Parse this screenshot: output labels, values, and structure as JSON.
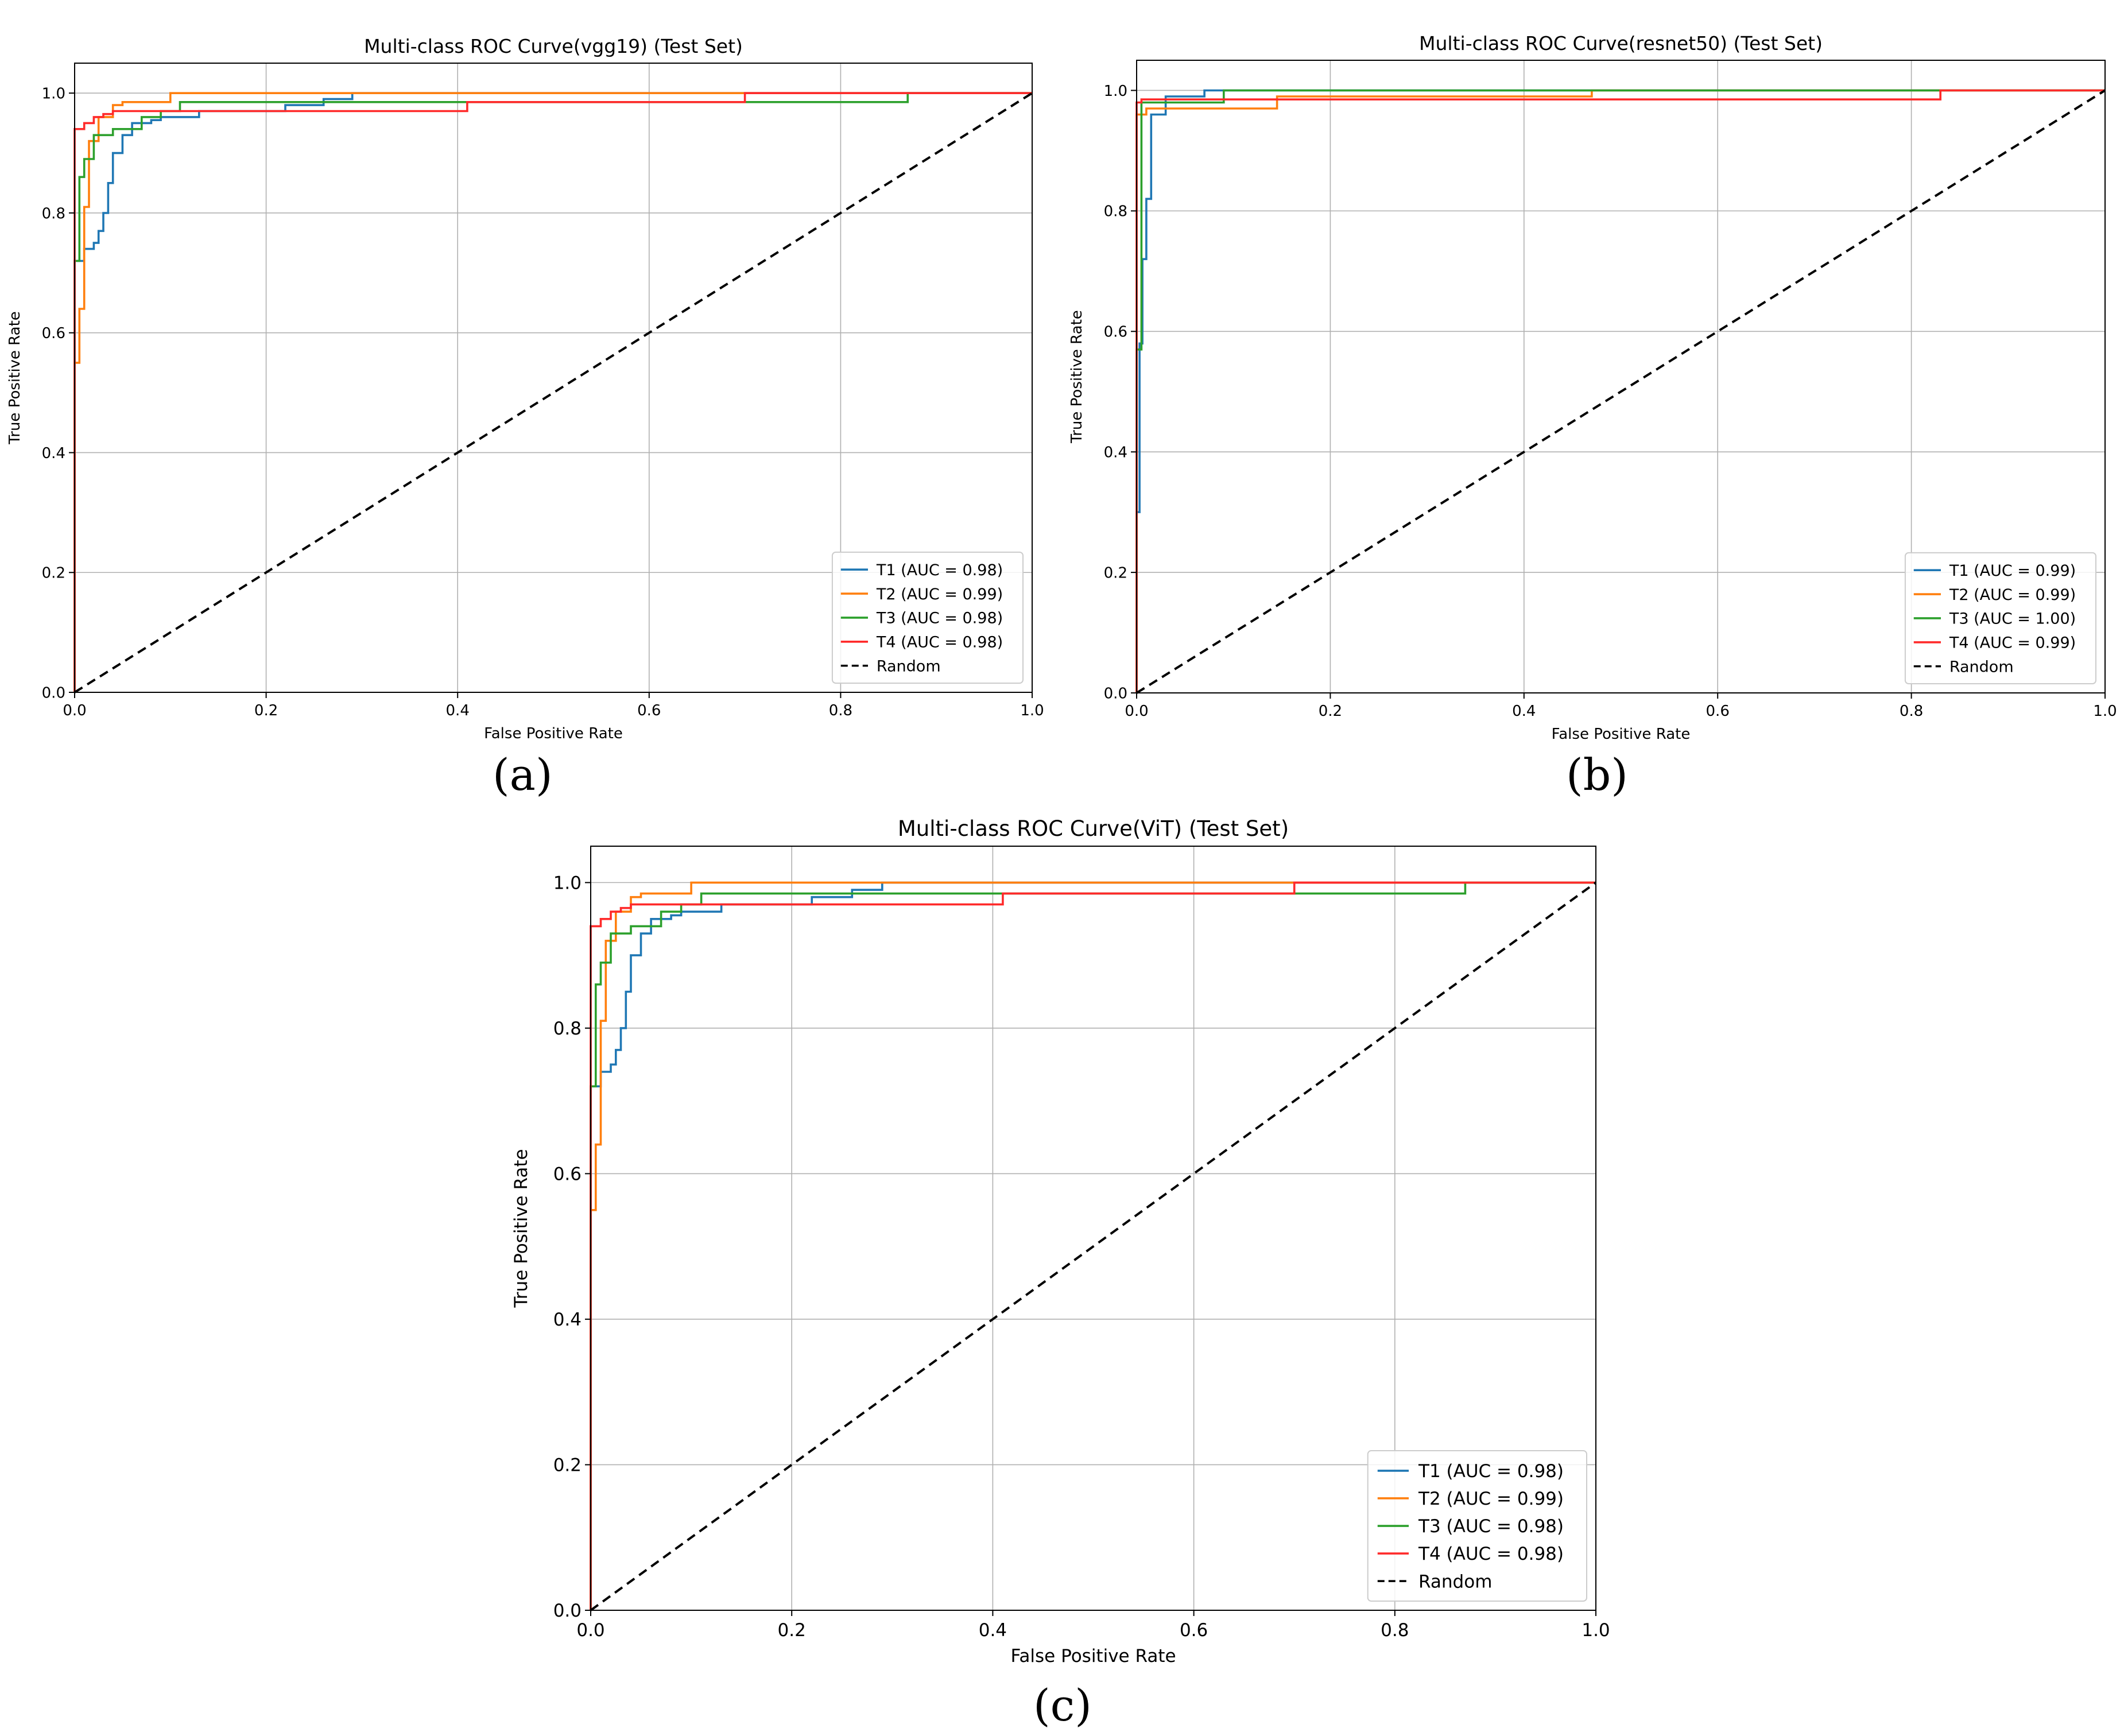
{
  "figure": {
    "panel_labels": [
      "(a)",
      "(b)",
      "(c)"
    ]
  },
  "chart_data": [
    {
      "type": "line",
      "title": "Multi-class ROC Curve(vgg19) (Test Set)",
      "xlabel": "False Positive Rate",
      "ylabel": "True Positive Rate",
      "xlim": [
        0,
        1
      ],
      "ylim": [
        0,
        1.05
      ],
      "xticks": [
        "0.0",
        "0.2",
        "0.4",
        "0.6",
        "0.8",
        "1.0"
      ],
      "yticks": [
        "0.0",
        "0.2",
        "0.4",
        "0.6",
        "0.8",
        "1.0"
      ],
      "grid": true,
      "legend_position": "lower-right",
      "series": [
        {
          "name": "T1 (AUC = 0.98)",
          "color": "#1f77b4",
          "dashed": false,
          "x": [
            0,
            0,
            0.01,
            0.01,
            0.02,
            0.02,
            0.025,
            0.025,
            0.03,
            0.03,
            0.035,
            0.035,
            0.04,
            0.04,
            0.05,
            0.05,
            0.06,
            0.06,
            0.08,
            0.08,
            0.09,
            0.09,
            0.13,
            0.13,
            0.22,
            0.22,
            0.26,
            0.26,
            0.29,
            0.29,
            1.0
          ],
          "y": [
            0,
            0.72,
            0.72,
            0.74,
            0.74,
            0.75,
            0.75,
            0.77,
            0.77,
            0.8,
            0.8,
            0.85,
            0.85,
            0.9,
            0.9,
            0.93,
            0.93,
            0.95,
            0.95,
            0.955,
            0.955,
            0.96,
            0.96,
            0.97,
            0.97,
            0.98,
            0.98,
            0.99,
            0.99,
            1.0,
            1.0
          ]
        },
        {
          "name": "T2 (AUC = 0.99)",
          "color": "#ff7f0e",
          "dashed": false,
          "x": [
            0,
            0,
            0.005,
            0.005,
            0.01,
            0.01,
            0.015,
            0.015,
            0.025,
            0.025,
            0.04,
            0.04,
            0.05,
            0.05,
            0.1,
            0.1,
            1.0
          ],
          "y": [
            0,
            0.55,
            0.55,
            0.64,
            0.64,
            0.81,
            0.81,
            0.92,
            0.92,
            0.96,
            0.96,
            0.98,
            0.98,
            0.985,
            0.985,
            1.0,
            1.0
          ]
        },
        {
          "name": "T3 (AUC = 0.98)",
          "color": "#2ca02c",
          "dashed": false,
          "x": [
            0,
            0,
            0.005,
            0.005,
            0.01,
            0.01,
            0.02,
            0.02,
            0.04,
            0.04,
            0.07,
            0.07,
            0.09,
            0.09,
            0.11,
            0.11,
            0.87,
            0.87,
            1.0
          ],
          "y": [
            0,
            0.72,
            0.72,
            0.86,
            0.86,
            0.89,
            0.89,
            0.93,
            0.93,
            0.94,
            0.94,
            0.96,
            0.96,
            0.97,
            0.97,
            0.985,
            0.985,
            1.0,
            1.0
          ]
        },
        {
          "name": "T4 (AUC = 0.98)",
          "color": "#ff2a2a",
          "dashed": false,
          "x": [
            0,
            0,
            0.01,
            0.01,
            0.02,
            0.02,
            0.03,
            0.03,
            0.04,
            0.04,
            0.41,
            0.41,
            0.7,
            0.7,
            1.0
          ],
          "y": [
            0,
            0.94,
            0.94,
            0.95,
            0.95,
            0.96,
            0.96,
            0.965,
            0.965,
            0.97,
            0.97,
            0.985,
            0.985,
            1.0,
            1.0
          ]
        },
        {
          "name": "Random",
          "color": "#000000",
          "dashed": true,
          "x": [
            0,
            1
          ],
          "y": [
            0,
            1
          ]
        }
      ]
    },
    {
      "type": "line",
      "title": "Multi-class ROC Curve(resnet50) (Test Set)",
      "xlabel": "False Positive Rate",
      "ylabel": "True Positive Rate",
      "xlim": [
        0,
        1
      ],
      "ylim": [
        0,
        1.05
      ],
      "xticks": [
        "0.0",
        "0.2",
        "0.4",
        "0.6",
        "0.8",
        "1.0"
      ],
      "yticks": [
        "0.0",
        "0.2",
        "0.4",
        "0.6",
        "0.8",
        "1.0"
      ],
      "grid": true,
      "legend_position": "lower-right",
      "series": [
        {
          "name": "T1 (AUC = 0.99)",
          "color": "#1f77b4",
          "dashed": false,
          "x": [
            0,
            0,
            0.003,
            0.003,
            0.006,
            0.006,
            0.01,
            0.01,
            0.015,
            0.015,
            0.03,
            0.03,
            0.07,
            0.07,
            1.0
          ],
          "y": [
            0,
            0.3,
            0.3,
            0.58,
            0.58,
            0.72,
            0.72,
            0.82,
            0.82,
            0.96,
            0.96,
            0.99,
            0.99,
            1.0,
            1.0
          ]
        },
        {
          "name": "T2 (AUC = 0.99)",
          "color": "#ff7f0e",
          "dashed": false,
          "x": [
            0,
            0,
            0.01,
            0.01,
            0.145,
            0.145,
            0.47,
            0.47,
            1.0
          ],
          "y": [
            0,
            0.96,
            0.96,
            0.97,
            0.97,
            0.99,
            0.99,
            1.0,
            1.0
          ]
        },
        {
          "name": "T3 (AUC = 1.00)",
          "color": "#2ca02c",
          "dashed": false,
          "x": [
            0,
            0,
            0.005,
            0.005,
            0.09,
            0.09,
            1.0
          ],
          "y": [
            0,
            0.57,
            0.57,
            0.98,
            0.98,
            1.0,
            1.0
          ]
        },
        {
          "name": "T4 (AUC = 0.99)",
          "color": "#ff2a2a",
          "dashed": false,
          "x": [
            0,
            0,
            0.005,
            0.005,
            0.83,
            0.83,
            1.0
          ],
          "y": [
            0,
            0.98,
            0.98,
            0.985,
            0.985,
            1.0,
            1.0
          ]
        },
        {
          "name": "Random",
          "color": "#000000",
          "dashed": true,
          "x": [
            0,
            1
          ],
          "y": [
            0,
            1
          ]
        }
      ]
    },
    {
      "type": "line",
      "title": "Multi-class ROC Curve(ViT) (Test Set)",
      "xlabel": "False Positive Rate",
      "ylabel": "True Positive Rate",
      "xlim": [
        0,
        1
      ],
      "ylim": [
        0,
        1.05
      ],
      "xticks": [
        "0.0",
        "0.2",
        "0.4",
        "0.6",
        "0.8",
        "1.0"
      ],
      "yticks": [
        "0.0",
        "0.2",
        "0.4",
        "0.6",
        "0.8",
        "1.0"
      ],
      "grid": true,
      "legend_position": "lower-right",
      "series": [
        {
          "name": "T1 (AUC = 0.98)",
          "color": "#1f77b4",
          "dashed": false,
          "x": [
            0,
            0,
            0.01,
            0.01,
            0.02,
            0.02,
            0.025,
            0.025,
            0.03,
            0.03,
            0.035,
            0.035,
            0.04,
            0.04,
            0.05,
            0.05,
            0.06,
            0.06,
            0.08,
            0.08,
            0.09,
            0.09,
            0.13,
            0.13,
            0.22,
            0.22,
            0.26,
            0.26,
            0.29,
            0.29,
            1.0
          ],
          "y": [
            0,
            0.72,
            0.72,
            0.74,
            0.74,
            0.75,
            0.75,
            0.77,
            0.77,
            0.8,
            0.8,
            0.85,
            0.85,
            0.9,
            0.9,
            0.93,
            0.93,
            0.95,
            0.95,
            0.955,
            0.955,
            0.96,
            0.96,
            0.97,
            0.97,
            0.98,
            0.98,
            0.99,
            0.99,
            1.0,
            1.0
          ]
        },
        {
          "name": "T2 (AUC = 0.99)",
          "color": "#ff7f0e",
          "dashed": false,
          "x": [
            0,
            0,
            0.005,
            0.005,
            0.01,
            0.01,
            0.015,
            0.015,
            0.025,
            0.025,
            0.04,
            0.04,
            0.05,
            0.05,
            0.1,
            0.1,
            1.0
          ],
          "y": [
            0,
            0.55,
            0.55,
            0.64,
            0.64,
            0.81,
            0.81,
            0.92,
            0.92,
            0.96,
            0.96,
            0.98,
            0.98,
            0.985,
            0.985,
            1.0,
            1.0
          ]
        },
        {
          "name": "T3 (AUC = 0.98)",
          "color": "#2ca02c",
          "dashed": false,
          "x": [
            0,
            0,
            0.005,
            0.005,
            0.01,
            0.01,
            0.02,
            0.02,
            0.04,
            0.04,
            0.07,
            0.07,
            0.09,
            0.09,
            0.11,
            0.11,
            0.87,
            0.87,
            1.0
          ],
          "y": [
            0,
            0.72,
            0.72,
            0.86,
            0.86,
            0.89,
            0.89,
            0.93,
            0.93,
            0.94,
            0.94,
            0.96,
            0.96,
            0.97,
            0.97,
            0.985,
            0.985,
            1.0,
            1.0
          ]
        },
        {
          "name": "T4 (AUC = 0.98)",
          "color": "#ff2a2a",
          "dashed": false,
          "x": [
            0,
            0,
            0.01,
            0.01,
            0.02,
            0.02,
            0.03,
            0.03,
            0.04,
            0.04,
            0.41,
            0.41,
            0.7,
            0.7,
            1.0
          ],
          "y": [
            0,
            0.94,
            0.94,
            0.95,
            0.95,
            0.96,
            0.96,
            0.965,
            0.965,
            0.97,
            0.97,
            0.985,
            0.985,
            1.0,
            1.0
          ]
        },
        {
          "name": "Random",
          "color": "#000000",
          "dashed": true,
          "x": [
            0,
            1
          ],
          "y": [
            0,
            1
          ]
        }
      ]
    }
  ]
}
